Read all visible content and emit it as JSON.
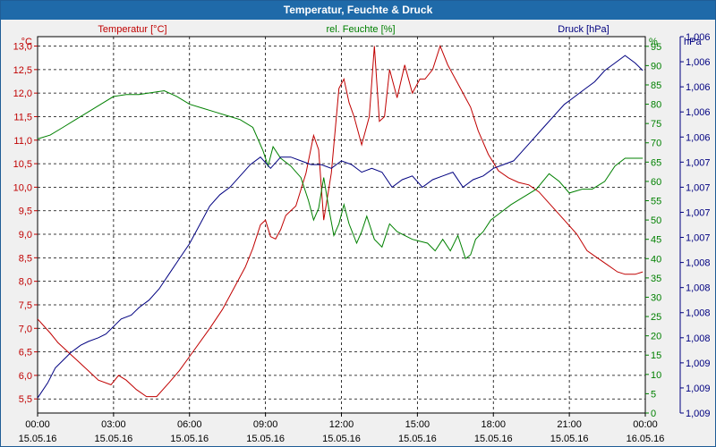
{
  "window": {
    "title": "Temperatur, Feuchte & Druck"
  },
  "chart_data": {
    "type": "line",
    "title": "Temperatur, Feuchte & Druck",
    "grid": true,
    "x": {
      "tick_labels": [
        {
          "time": "00:00",
          "date": "15.05.16"
        },
        {
          "time": "03:00",
          "date": "15.05.16"
        },
        {
          "time": "06:00",
          "date": "15.05.16"
        },
        {
          "time": "09:00",
          "date": "15.05.16"
        },
        {
          "time": "12:00",
          "date": "15.05.16"
        },
        {
          "time": "15:00",
          "date": "15.05.16"
        },
        {
          "time": "18:00",
          "date": "15.05.16"
        },
        {
          "time": "21:00",
          "date": "15.05.16"
        },
        {
          "time": "00:00",
          "date": "16.05.16"
        }
      ],
      "range_hours": [
        0,
        24
      ]
    },
    "axes": {
      "temperature": {
        "label": "Temperatur [°C]",
        "unit": "°C",
        "color": "#c00000",
        "ylim": [
          5.2,
          13.2
        ],
        "ticks": [
          "5,5",
          "6,0",
          "6,5",
          "7,0",
          "7,5",
          "8,0",
          "8,5",
          "9,0",
          "9,5",
          "10,0",
          "10,5",
          "11,0",
          "11,5",
          "12,0",
          "12,5",
          "13,0"
        ]
      },
      "humidity": {
        "label": "rel. Feuchte [%]",
        "unit": "%",
        "color": "#008000",
        "ylim": [
          0,
          97.5
        ],
        "ticks": [
          "0",
          "5",
          "10",
          "15",
          "20",
          "25",
          "30",
          "35",
          "40",
          "45",
          "50",
          "55",
          "60",
          "65",
          "70",
          "75",
          "80",
          "85",
          "90",
          "95"
        ]
      },
      "pressure": {
        "label": "Druck [hPa]",
        "unit": "hPa",
        "color": "#000080",
        "ylim": [
          0,
          100
        ],
        "ticks": [
          "1,006",
          "1,006",
          "1,006",
          "1,006",
          "1,006",
          "1,007",
          "1,007",
          "1,007",
          "1,007",
          "1,008",
          "1,008",
          "1,008",
          "1,008",
          "1,009",
          "1,009",
          "1,009"
        ]
      }
    },
    "series": [
      {
        "name": "Temperatur [°C]",
        "axis": "temperature",
        "color": "#c00000",
        "x": [
          0,
          0.5,
          0.8,
          1.2,
          1.6,
          2.0,
          2.4,
          2.9,
          3.2,
          3.5,
          3.9,
          4.3,
          4.7,
          5.2,
          5.6,
          6.2,
          6.8,
          7.3,
          7.8,
          8.2,
          8.5,
          8.8,
          9.0,
          9.2,
          9.4,
          9.6,
          9.8,
          10.2,
          10.6,
          10.9,
          11.1,
          11.3,
          11.6,
          11.9,
          12.1,
          12.3,
          12.5,
          12.8,
          13.1,
          13.3,
          13.5,
          13.7,
          13.9,
          14.2,
          14.5,
          14.8,
          15.1,
          15.3,
          15.6,
          15.9,
          16.2,
          16.5,
          16.7,
          16.9,
          17.1,
          17.4,
          17.8,
          18.2,
          18.6,
          19.0,
          19.4,
          19.8,
          20.3,
          20.8,
          21.3,
          21.7,
          22.1,
          22.5,
          22.9,
          23.2,
          23.6,
          23.9
        ],
        "values": [
          7.2,
          6.9,
          6.7,
          6.5,
          6.3,
          6.1,
          5.9,
          5.8,
          6.0,
          5.9,
          5.7,
          5.55,
          5.55,
          5.85,
          6.1,
          6.55,
          7.0,
          7.4,
          7.9,
          8.3,
          8.7,
          9.2,
          9.3,
          8.95,
          8.9,
          9.1,
          9.4,
          9.6,
          10.3,
          11.1,
          10.8,
          9.3,
          10.3,
          12.1,
          12.3,
          11.8,
          11.5,
          10.9,
          11.5,
          13.0,
          11.4,
          11.5,
          12.5,
          11.9,
          12.6,
          12.0,
          12.3,
          12.3,
          12.5,
          13.0,
          12.6,
          12.3,
          12.1,
          11.9,
          11.7,
          11.2,
          10.7,
          10.35,
          10.2,
          10.1,
          10.05,
          9.9,
          9.6,
          9.3,
          9.0,
          8.65,
          8.5,
          8.35,
          8.2,
          8.15,
          8.15,
          8.2
        ]
      },
      {
        "name": "rel. Feuchte [%]",
        "axis": "humidity",
        "color": "#008000",
        "x": [
          0,
          0.5,
          1.0,
          1.5,
          2.0,
          2.5,
          3.0,
          3.5,
          4.0,
          4.5,
          5.0,
          5.5,
          6.0,
          6.5,
          7.0,
          7.5,
          8.0,
          8.5,
          8.9,
          9.1,
          9.3,
          9.6,
          10.0,
          10.4,
          10.7,
          10.9,
          11.1,
          11.3,
          11.5,
          11.7,
          11.9,
          12.1,
          12.3,
          12.6,
          12.8,
          13.0,
          13.3,
          13.6,
          13.9,
          14.2,
          14.5,
          14.8,
          15.1,
          15.4,
          15.7,
          16.0,
          16.3,
          16.6,
          16.9,
          17.1,
          17.3,
          17.6,
          17.9,
          18.3,
          18.7,
          19.2,
          19.7,
          20.2,
          20.6,
          21.0,
          21.5,
          21.9,
          22.4,
          22.8,
          23.2,
          23.6,
          23.9
        ],
        "values": [
          71,
          72,
          74,
          76,
          78,
          80,
          82,
          82.5,
          82.5,
          83,
          83.5,
          82,
          80,
          79,
          78,
          77,
          76,
          74,
          68,
          64,
          69,
          66,
          64,
          61,
          55,
          50,
          53,
          61,
          53,
          46,
          49,
          54,
          49,
          44,
          47,
          51,
          45,
          43,
          49,
          47,
          46,
          45,
          44.5,
          44,
          42,
          45,
          42,
          46,
          40,
          41,
          45,
          47,
          50,
          52,
          54,
          56,
          58,
          62,
          60,
          57,
          58,
          58,
          60,
          64,
          66,
          66,
          66
        ]
      },
      {
        "name": "Druck [hPa]",
        "axis": "pressure",
        "color": "#000080",
        "x": [
          0,
          0.4,
          0.7,
          1.0,
          1.3,
          1.7,
          2.0,
          2.4,
          2.7,
          3.0,
          3.3,
          3.7,
          4.0,
          4.4,
          4.8,
          5.2,
          5.6,
          6.0,
          6.4,
          6.8,
          7.2,
          7.6,
          8.0,
          8.4,
          8.8,
          9.2,
          9.6,
          10.0,
          10.4,
          10.8,
          11.2,
          11.6,
          12.0,
          12.4,
          12.8,
          13.2,
          13.6,
          14.0,
          14.4,
          14.8,
          15.2,
          15.6,
          16.0,
          16.4,
          16.8,
          17.2,
          17.6,
          18.0,
          18.4,
          18.8,
          19.2,
          19.6,
          20.0,
          20.4,
          20.8,
          21.2,
          21.6,
          22.0,
          22.4,
          22.8,
          23.2,
          23.6,
          23.9
        ],
        "values": [
          4,
          8,
          12,
          14,
          16,
          18,
          19,
          20,
          21,
          23,
          25,
          26,
          28,
          30,
          33,
          37,
          41,
          45,
          50,
          55,
          58,
          60,
          63,
          66,
          68,
          65,
          68,
          68,
          67,
          66,
          66,
          65,
          67,
          66,
          64,
          65,
          64,
          60,
          62,
          63,
          60,
          62,
          63,
          64,
          60,
          62,
          63,
          65,
          66,
          67,
          70,
          73,
          76,
          79,
          82,
          84,
          86,
          88,
          91,
          93,
          95,
          93,
          91
        ]
      }
    ]
  }
}
